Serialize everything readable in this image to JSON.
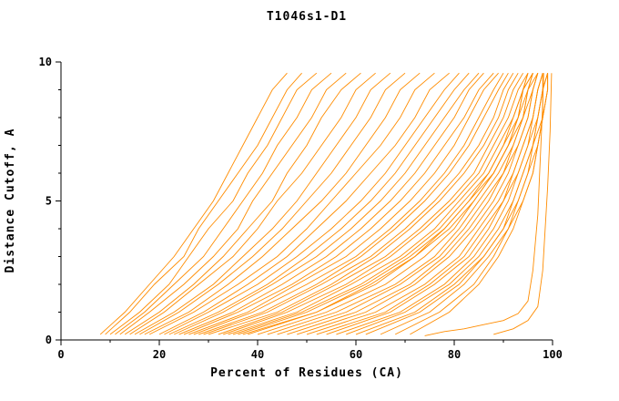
{
  "chart_data": {
    "type": "line",
    "title": "T1046s1-D1",
    "xlabel": "Percent of Residues (CA)",
    "ylabel": "Distance Cutoff, A",
    "xlim": [
      0,
      100
    ],
    "ylim": [
      0,
      10
    ],
    "x_ticks": [
      0,
      20,
      40,
      60,
      80,
      100
    ],
    "y_ticks": [
      0,
      5,
      10
    ],
    "x_minor_ticks": [
      10,
      30,
      50,
      70,
      90
    ],
    "y_minor_ticks": [
      1,
      2,
      3,
      4,
      6,
      7,
      8,
      9
    ],
    "grid": false,
    "legend_position": "none",
    "series_color": "#ff8c00",
    "axis_color": "#000000",
    "y_levels": [
      0.2,
      1,
      2,
      3,
      4,
      5,
      6,
      7,
      8,
      9,
      9.6
    ],
    "curves": [
      [
        8,
        13,
        18,
        23,
        27,
        31,
        34,
        37,
        40,
        43,
        46
      ],
      [
        9,
        14,
        19,
        25,
        28,
        32,
        36,
        40,
        43,
        46,
        49
      ],
      [
        10,
        16,
        22,
        26,
        30,
        35,
        38,
        42,
        45,
        48,
        52
      ],
      [
        11,
        17,
        23,
        29,
        33,
        37,
        41,
        44,
        48,
        51,
        55
      ],
      [
        12,
        18,
        25,
        31,
        36,
        39,
        43,
        47,
        51,
        54,
        58
      ],
      [
        13,
        20,
        27,
        33,
        38,
        43,
        46,
        50,
        53,
        57,
        61
      ],
      [
        14,
        21,
        28,
        35,
        40,
        44,
        49,
        53,
        57,
        60,
        64
      ],
      [
        15,
        23,
        31,
        37,
        43,
        48,
        52,
        56,
        60,
        63,
        67
      ],
      [
        16,
        24,
        32,
        39,
        45,
        50,
        55,
        59,
        63,
        66,
        70
      ],
      [
        17,
        26,
        34,
        41,
        47,
        53,
        58,
        62,
        66,
        69,
        73
      ],
      [
        18,
        27,
        36,
        44,
        50,
        55,
        60,
        65,
        69,
        72,
        76
      ],
      [
        20,
        29,
        38,
        46,
        52,
        58,
        63,
        68,
        72,
        75,
        79
      ],
      [
        21,
        30,
        40,
        48,
        55,
        61,
        66,
        70,
        74,
        78,
        81
      ],
      [
        22,
        32,
        42,
        50,
        57,
        63,
        68,
        72,
        76,
        80,
        83
      ],
      [
        23,
        33,
        43,
        52,
        59,
        65,
        70,
        74,
        78,
        82,
        85
      ],
      [
        24,
        35,
        45,
        54,
        61,
        67,
        72,
        76,
        80,
        83,
        86
      ],
      [
        25,
        36,
        47,
        56,
        63,
        69,
        74,
        78,
        82,
        85,
        88
      ],
      [
        26,
        38,
        48,
        58,
        65,
        71,
        76,
        80,
        83,
        86,
        89
      ],
      [
        27,
        39,
        50,
        60,
        67,
        73,
        78,
        82,
        85,
        88,
        90
      ],
      [
        28,
        41,
        52,
        61,
        68,
        74,
        79,
        83,
        86,
        89,
        91
      ],
      [
        29,
        42,
        53,
        63,
        70,
        76,
        81,
        85,
        88,
        90,
        92
      ],
      [
        30,
        44,
        55,
        64,
        71,
        77,
        82,
        86,
        89,
        91,
        93
      ],
      [
        32,
        45,
        56,
        66,
        73,
        79,
        84,
        87,
        90,
        92,
        94
      ],
      [
        33,
        46,
        58,
        67,
        74,
        80,
        85,
        88,
        91,
        93,
        95
      ],
      [
        34,
        48,
        59,
        69,
        76,
        81,
        86,
        89,
        92,
        94,
        95
      ],
      [
        35,
        49,
        61,
        70,
        77,
        82,
        87,
        90,
        93,
        94,
        96
      ],
      [
        36,
        50,
        62,
        71,
        78,
        83,
        88,
        91,
        93,
        95,
        96
      ],
      [
        37,
        52,
        63,
        72,
        79,
        84,
        88,
        91,
        94,
        95,
        97
      ],
      [
        38,
        52,
        64,
        72,
        78,
        83,
        87,
        90,
        92,
        94,
        95
      ],
      [
        40,
        54,
        66,
        74,
        80,
        84,
        88,
        91,
        93,
        94,
        96
      ],
      [
        42,
        56,
        68,
        76,
        81,
        85,
        89,
        92,
        94,
        95,
        96
      ],
      [
        44,
        58,
        69,
        77,
        82,
        86,
        90,
        92,
        94,
        96,
        97
      ],
      [
        46,
        60,
        71,
        78,
        83,
        87,
        90,
        93,
        95,
        96,
        97
      ],
      [
        48,
        62,
        72,
        79,
        84,
        88,
        91,
        93,
        95,
        96,
        97
      ],
      [
        50,
        64,
        74,
        81,
        85,
        89,
        92,
        94,
        96,
        97,
        98
      ],
      [
        52,
        66,
        75,
        82,
        86,
        90,
        92,
        94,
        96,
        97,
        98
      ],
      [
        54,
        67,
        76,
        83,
        87,
        90,
        93,
        95,
        96,
        97,
        98
      ],
      [
        56,
        69,
        78,
        84,
        88,
        91,
        93,
        95,
        97,
        98,
        98
      ],
      [
        58,
        70,
        79,
        85,
        89,
        92,
        94,
        96,
        97,
        98,
        99
      ],
      [
        60,
        72,
        80,
        86,
        90,
        92,
        94,
        96,
        97,
        98,
        99
      ],
      [
        62,
        73,
        81,
        86,
        90,
        93,
        95,
        96,
        98,
        98,
        99
      ],
      [
        65,
        75,
        82,
        87,
        91,
        93,
        95,
        97,
        98,
        99,
        99
      ],
      [
        68,
        77,
        84,
        88,
        91,
        94,
        96,
        97,
        98,
        99,
        99
      ],
      [
        71,
        79,
        85,
        89,
        92,
        94,
        96,
        97,
        98,
        99,
        99
      ]
    ],
    "outlier_curves": [
      [
        [
          74,
          0.15
        ],
        [
          78,
          0.3
        ],
        [
          82,
          0.4
        ],
        [
          86,
          0.55
        ],
        [
          90,
          0.7
        ],
        [
          93,
          0.95
        ],
        [
          95,
          1.4
        ],
        [
          96,
          2.5
        ],
        [
          96.5,
          3.5
        ],
        [
          97,
          4.5
        ],
        [
          97.5,
          6.5
        ],
        [
          98,
          8.5
        ],
        [
          98.2,
          9.6
        ]
      ],
      [
        [
          88,
          0.2
        ],
        [
          92,
          0.4
        ],
        [
          95,
          0.7
        ],
        [
          97,
          1.2
        ],
        [
          98,
          2.5
        ],
        [
          98.5,
          4
        ],
        [
          99,
          5.5
        ],
        [
          99.5,
          7.5
        ],
        [
          99.8,
          9.6
        ]
      ]
    ]
  }
}
